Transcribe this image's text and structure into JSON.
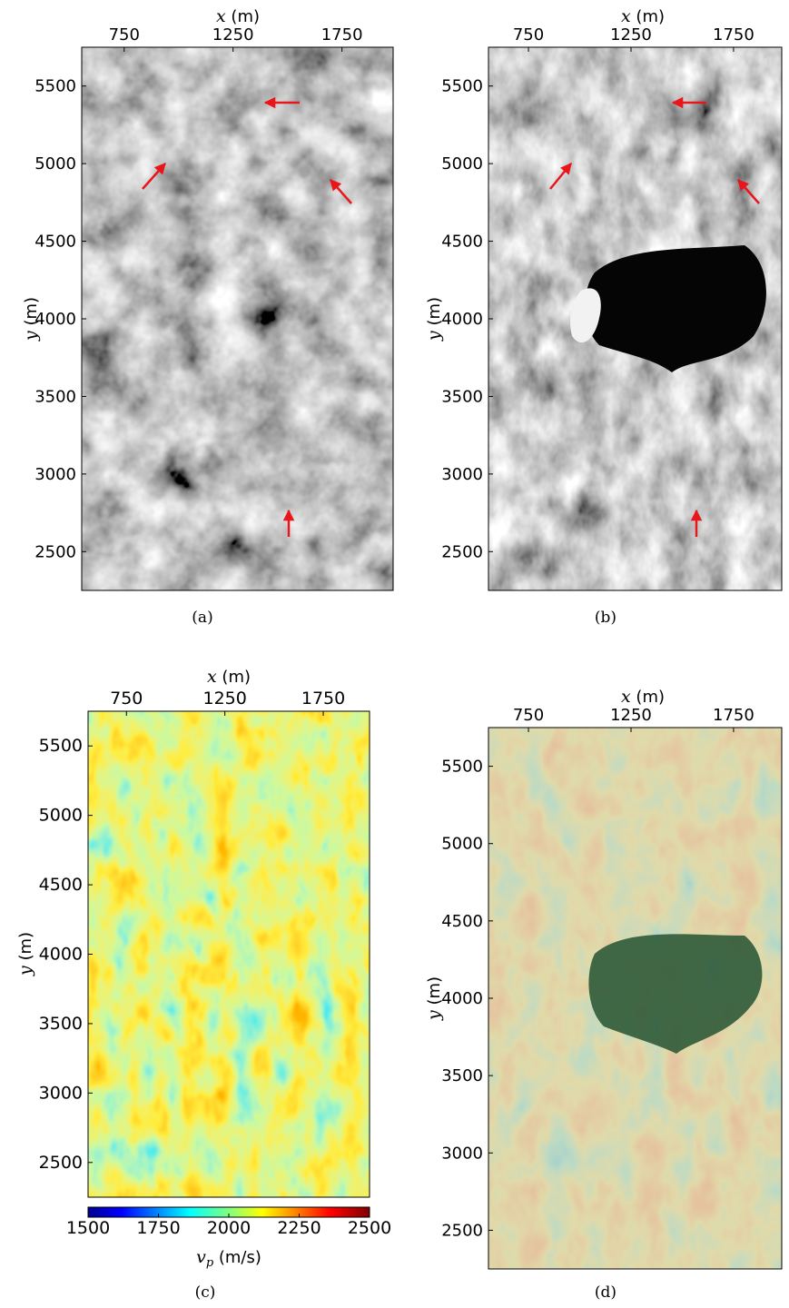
{
  "chart_data": [
    {
      "panel": "a",
      "type": "heatmap",
      "colormap": "gray",
      "xlabel_var": "x",
      "xlabel_unit": " (m)",
      "ylabel_var": "y",
      "ylabel_unit": " (m)",
      "x_ticks": [
        "750",
        "1250",
        "1750"
      ],
      "y_ticks": [
        "5500",
        "5000",
        "4500",
        "4000",
        "3500",
        "3000",
        "2500"
      ],
      "caption": "(a)",
      "annotations": [
        {
          "type": "arrow",
          "tip": [
            1290,
            5400
          ],
          "direction": "left"
        },
        {
          "type": "arrow",
          "tip": [
            920,
            5010
          ],
          "direction": "up-right"
        },
        {
          "type": "arrow",
          "tip": [
            1680,
            4930
          ],
          "direction": "up-left"
        },
        {
          "type": "arrow",
          "tip": [
            1500,
            2730
          ],
          "direction": "up"
        }
      ]
    },
    {
      "panel": "b",
      "type": "heatmap",
      "colormap": "gray",
      "xlabel_var": "x",
      "xlabel_unit": " (m)",
      "ylabel_var": "y",
      "ylabel_unit": " (m)",
      "x_ticks": [
        "750",
        "1250",
        "1750"
      ],
      "y_ticks": [
        "5500",
        "5000",
        "4500",
        "4000",
        "3500",
        "3000",
        "2500"
      ],
      "caption": "(b)",
      "annotations": [
        {
          "type": "arrow",
          "tip": [
            1290,
            5400
          ],
          "direction": "left"
        },
        {
          "type": "arrow",
          "tip": [
            920,
            5010
          ],
          "direction": "up-right"
        },
        {
          "type": "arrow",
          "tip": [
            1680,
            4930
          ],
          "direction": "up-left"
        },
        {
          "type": "arrow",
          "tip": [
            1500,
            2730
          ],
          "direction": "up"
        }
      ]
    },
    {
      "panel": "c",
      "type": "heatmap",
      "colormap": "jet",
      "xlabel_var": "x",
      "xlabel_unit": " (m)",
      "ylabel_var": "y",
      "ylabel_unit": " (m)",
      "x_ticks": [
        "750",
        "1250",
        "1750"
      ],
      "y_ticks": [
        "5500",
        "5000",
        "4500",
        "4000",
        "3500",
        "3000",
        "2500"
      ],
      "colorbar": {
        "ticks": [
          "1500",
          "1750",
          "2000",
          "2250",
          "2500"
        ],
        "range": [
          1500,
          2500
        ],
        "label_var": "v",
        "label_sub": "p",
        "label_unit": " (m/s)"
      },
      "caption": "(c)"
    },
    {
      "panel": "d",
      "type": "heatmap",
      "colormap": "jet overlay on gray",
      "xlabel_var": "x",
      "xlabel_unit": " (m)",
      "ylabel_var": "y",
      "ylabel_unit": " (m)",
      "x_ticks": [
        "750",
        "1250",
        "1750"
      ],
      "y_ticks": [
        "5500",
        "5000",
        "4500",
        "4000",
        "3500",
        "3000",
        "2500"
      ],
      "caption": "(d)"
    }
  ],
  "colors": {
    "arrow": "#e8151b",
    "frame": "#000000"
  }
}
